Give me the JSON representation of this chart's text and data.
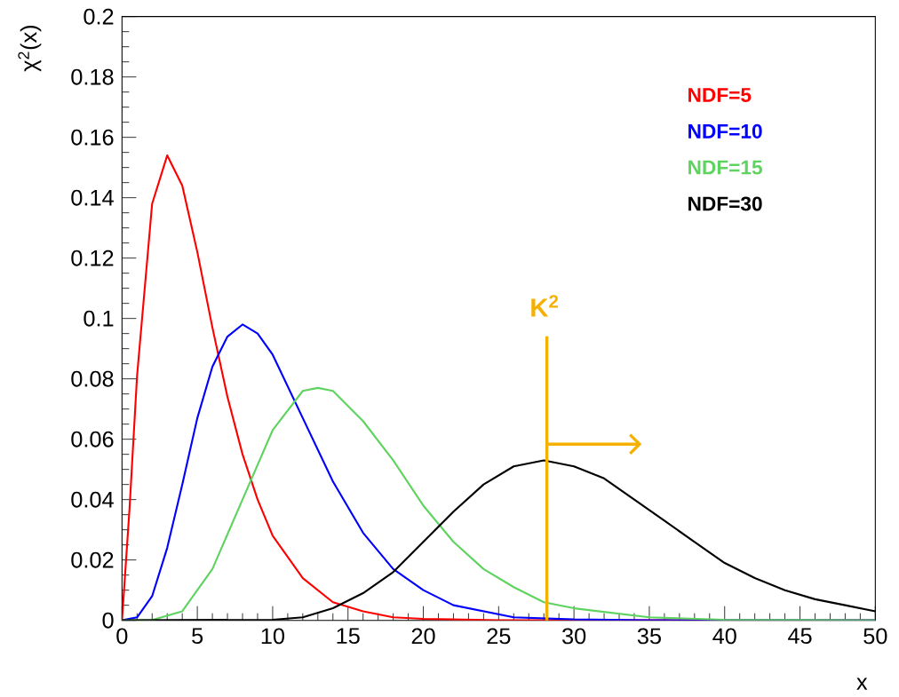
{
  "chart_data": {
    "type": "line",
    "xlabel": "x",
    "ylabel": "χ$^{2}$(x)",
    "xlim": [
      0,
      50
    ],
    "ylim": [
      0,
      0.2
    ],
    "xticks": [
      0,
      5,
      10,
      15,
      20,
      25,
      30,
      35,
      40,
      45,
      50
    ],
    "yticks": [
      0,
      0.02,
      0.04,
      0.06,
      0.08,
      0.1,
      0.12,
      0.14,
      0.16,
      0.18,
      0.2
    ],
    "marker": "none",
    "line_style": "solid",
    "grid": false,
    "legend": "top right",
    "series": [
      {
        "name": "NDF=5",
        "color": "#ff0000",
        "x": [
          0,
          0.5,
          1,
          2,
          3,
          4,
          5,
          6,
          7,
          8,
          9,
          10,
          12,
          14,
          16,
          18,
          20,
          25,
          50
        ],
        "values": [
          0,
          0.037,
          0.081,
          0.138,
          0.154,
          0.144,
          0.122,
          0.097,
          0.074,
          0.055,
          0.04,
          0.028,
          0.014,
          0.006,
          0.003,
          0.001,
          0.0005,
          0,
          0
        ]
      },
      {
        "name": "NDF=10",
        "color": "#0000ff",
        "x": [
          0,
          1,
          2,
          3,
          4,
          5,
          6,
          7,
          8,
          9,
          10,
          12,
          14,
          16,
          18,
          20,
          22,
          24,
          26,
          30,
          35,
          50
        ],
        "values": [
          0,
          0.001,
          0.008,
          0.024,
          0.045,
          0.067,
          0.084,
          0.094,
          0.098,
          0.095,
          0.088,
          0.067,
          0.046,
          0.029,
          0.017,
          0.01,
          0.005,
          0.003,
          0.001,
          0.0003,
          0,
          0
        ]
      },
      {
        "name": "NDF=15",
        "color": "#5fd35f",
        "x": [
          0,
          2,
          4,
          6,
          8,
          10,
          12,
          13,
          14,
          16,
          18,
          20,
          22,
          24,
          26,
          28,
          30,
          35,
          40,
          50
        ],
        "values": [
          0,
          0.0001,
          0.003,
          0.017,
          0.04,
          0.063,
          0.076,
          0.077,
          0.076,
          0.066,
          0.053,
          0.038,
          0.026,
          0.017,
          0.011,
          0.006,
          0.004,
          0.001,
          0.0002,
          0
        ]
      },
      {
        "name": "NDF=30",
        "color": "#000000",
        "x": [
          0,
          10,
          12,
          14,
          16,
          18,
          20,
          22,
          24,
          26,
          28,
          30,
          32,
          34,
          36,
          38,
          40,
          42,
          44,
          46,
          48,
          50
        ],
        "values": [
          0,
          0.0002,
          0.001,
          0.004,
          0.009,
          0.016,
          0.026,
          0.036,
          0.045,
          0.051,
          0.053,
          0.051,
          0.047,
          0.04,
          0.033,
          0.026,
          0.019,
          0.014,
          0.01,
          0.007,
          0.005,
          0.003
        ]
      }
    ],
    "ref_lines": [
      {
        "axis": "x",
        "value": 28.2,
        "label": "K$^{2}$",
        "color": "#f5b000"
      }
    ]
  }
}
